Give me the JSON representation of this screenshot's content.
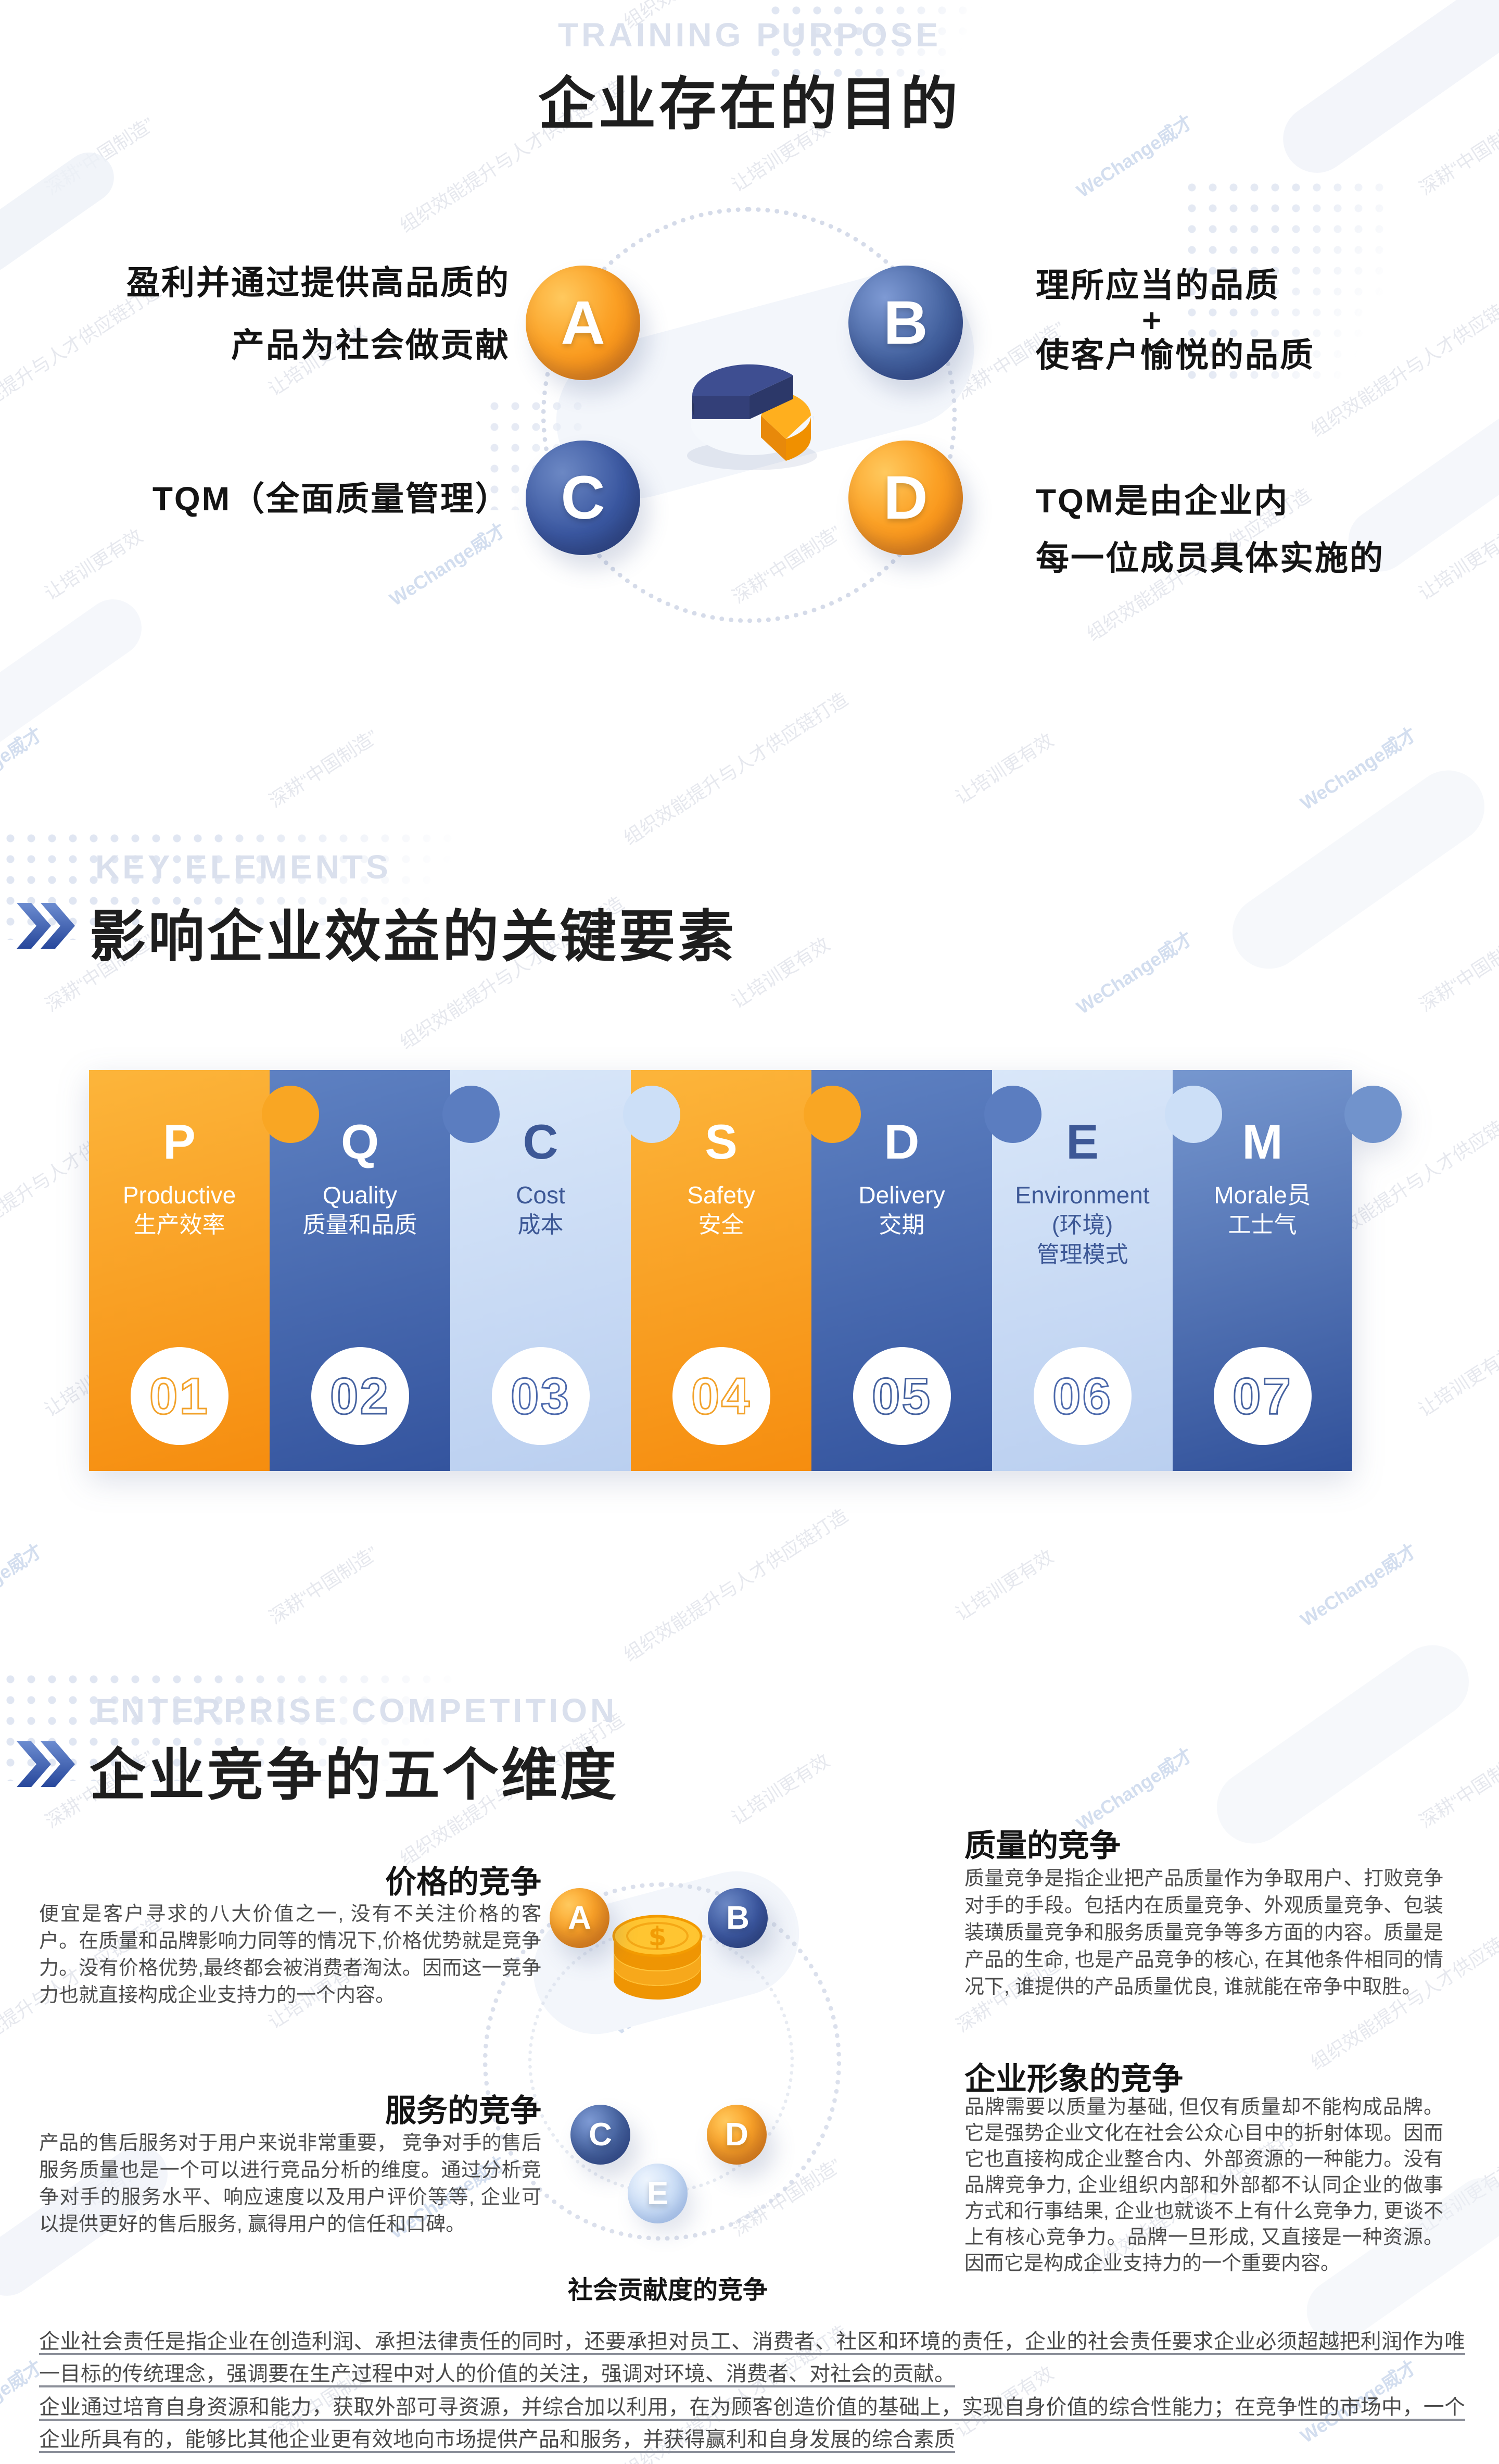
{
  "colors": {
    "orange": "#F7941E",
    "blue": "#3D5FA8",
    "navy": "#2F4C97",
    "light_blue": "#C9DCF6",
    "heading_black": "#1E1E1E",
    "eyebrow_gray": "#DAE0ED"
  },
  "watermark": {
    "phrases": [
      "WeChange威才",
      "深耕“中国制造”",
      "组织效能提升与人才供应链打造",
      "让培训更有效"
    ]
  },
  "s1": {
    "eyebrow": "TRAINING PURPOSE",
    "title": "企业存在的目的",
    "a": {
      "letter": "A",
      "line1": "盈利并通过提供高品质的",
      "line2": "产品为社会做贡献"
    },
    "b": {
      "letter": "B",
      "line1": "理所应当的品质",
      "plus": "+",
      "line2": "使客户愉悦的品质"
    },
    "c": {
      "letter": "C",
      "text": "TQM（全面质量管理）"
    },
    "d": {
      "letter": "D",
      "line1": "TQM是由企业内",
      "line2": "每一位成员具体实施的"
    }
  },
  "s2": {
    "eyebrow": "KEY ELEMENTS",
    "title": "影响企业效益的关键要素",
    "pieces": [
      {
        "letter": "P",
        "en": "Productive",
        "zh": "生产效率",
        "zh2": "",
        "num": "01",
        "color": "orange"
      },
      {
        "letter": "Q",
        "en": "Quality",
        "zh": "质量和品质",
        "zh2": "",
        "num": "02",
        "color": "blue"
      },
      {
        "letter": "C",
        "en": "Cost",
        "zh": "成本",
        "zh2": "",
        "num": "03",
        "color": "light_blue"
      },
      {
        "letter": "S",
        "en": "Safety",
        "zh": "安全",
        "zh2": "",
        "num": "04",
        "color": "orange"
      },
      {
        "letter": "D",
        "en": "Delivery",
        "zh": "交期",
        "zh2": "",
        "num": "05",
        "color": "blue"
      },
      {
        "letter": "E",
        "en": "Environment",
        "zh": "(环境)",
        "zh2": "管理模式",
        "num": "06",
        "color": "light_blue"
      },
      {
        "letter": "M",
        "en": "Morale员",
        "zh": "工士气",
        "zh2": "",
        "num": "07",
        "color": "navy"
      }
    ]
  },
  "s3": {
    "eyebrow": "ENTERPRISE COMPETITION",
    "title": "企业竞争的五个维度",
    "letters": {
      "a": "A",
      "b": "B",
      "c": "C",
      "d": "D",
      "e": "E"
    },
    "price": {
      "heading": "价格的竞争",
      "body": "便宜是客户寻求的八大价值之一, 没有不关注价格的客户。在质量和品牌影响力同等的情况下,价格优势就是竞争力。没有价格优势,最终都会被消费者淘汰。因而这一竞争力也就直接构成企业支持力的一个内容。"
    },
    "service": {
      "heading": "服务的竞争",
      "body": "产品的售后服务对于用户来说非常重要， 竞争对手的售后服务质量也是一个可以进行竞品分析的维度。通过分析竞争对手的服务水平、响应速度以及用户评价等等, 企业可以提供更好的售后服务, 赢得用户的信任和口碑。"
    },
    "quality": {
      "heading": "质量的竞争",
      "body": "质量竞争是指企业把产品质量作为争取用户、打败竞争对手的手段。包括内在质量竞争、外观质量竞争、包装装璜质量竞争和服务质量竞争等多方面的内容。质量是产品的生命, 也是产品竞争的核心, 在其他条件相同的情况下, 谁提供的产品质量优良, 谁就能在帝争中取胜。"
    },
    "image": {
      "heading": "企业形象的竞争",
      "body": "品牌需要以质量为基础, 但仅有质量却不能构成品牌。它是强势企业文化在社会公众心目中的折射体现。因而它也直接构成企业整合内、外部资源的一种能力。没有品牌竞争力, 企业组织内部和外部都不认同企业的做事方式和行事结果, 企业也就谈不上有什么竞争力, 更谈不上有核心竞争力。品牌一旦形成, 又直接是一种资源。因而它是构成企业支持力的一个重要内容。"
    },
    "social_label": "社会贡献度的竞争"
  },
  "footer": {
    "p1": "企业社会责任是指企业在创造利润、承担法律责任的同时，还要承担对员工、消费者、社区和环境的责任，企业的社会责任要求企业必须超越把利润作为唯一目标的传统理念，强调要在生产过程中对人的价值的关注，强调对环境、消费者、对社会的贡献。",
    "p2": "企业通过培育自身资源和能力，获取外部可寻资源，并综合加以利用，在为顾客创造价值的基础上，实现自身价值的综合性能力；在竞争性的市场中，一个企业所具有的，能够比其他企业更有效地向市场提供产品和服务，并获得赢利和自身发展的综合素质"
  }
}
